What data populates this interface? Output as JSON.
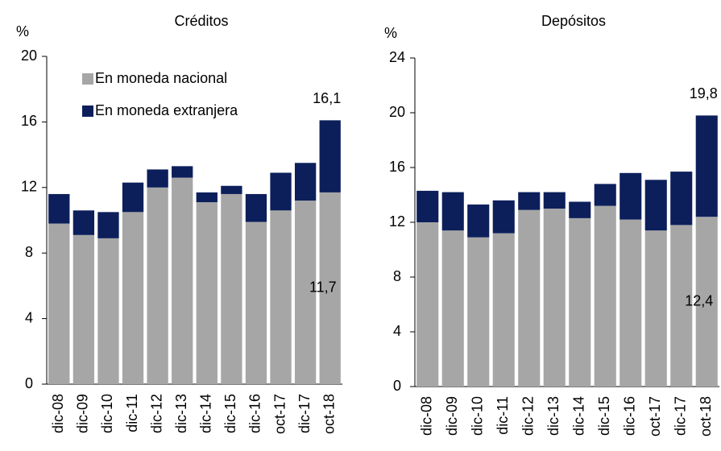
{
  "chart_data": [
    {
      "type": "stacked_bar",
      "title": "Créditos",
      "y_label": "%",
      "categories": [
        "dic-08",
        "dic-09",
        "dic-10",
        "dic-11",
        "dic-12",
        "dic-13",
        "dic-14",
        "dic-15",
        "dic-16",
        "oct-17",
        "dic-17",
        "oct-18"
      ],
      "series": [
        {
          "name": "En moneda nacional",
          "color": "#a6a6a6",
          "values": [
            9.8,
            9.1,
            8.9,
            10.5,
            12.0,
            12.6,
            11.1,
            11.6,
            9.9,
            10.6,
            11.2,
            11.7
          ]
        },
        {
          "name": "En moneda extranjera",
          "color": "#0c1f5b",
          "values": [
            1.8,
            1.5,
            1.6,
            1.8,
            1.1,
            0.7,
            0.6,
            0.5,
            1.7,
            2.3,
            2.3,
            4.4
          ]
        }
      ],
      "annotations": [
        "16,1",
        "11,7"
      ],
      "ylim": [
        0,
        20
      ],
      "yticks": [
        0,
        4,
        8,
        12,
        16,
        20
      ],
      "legend": "upper left"
    },
    {
      "type": "stacked_bar",
      "title": "Depósitos",
      "y_label": "%",
      "categories": [
        "dic-08",
        "dic-09",
        "dic-10",
        "dic-11",
        "dic-12",
        "dic-13",
        "dic-14",
        "dic-15",
        "dic-16",
        "oct-17",
        "dic-17",
        "oct-18"
      ],
      "series": [
        {
          "color": "#a6a6a6",
          "values": [
            12.0,
            11.4,
            10.9,
            11.2,
            12.9,
            13.0,
            12.3,
            13.2,
            12.2,
            11.4,
            11.8,
            12.4
          ]
        },
        {
          "color": "#0c1f5b",
          "values": [
            2.3,
            2.8,
            2.4,
            2.4,
            1.3,
            1.2,
            1.2,
            1.6,
            3.4,
            3.7,
            3.9,
            7.4
          ]
        }
      ],
      "annotations": [
        "19,8",
        "12,4"
      ],
      "ylim": [
        0,
        24
      ],
      "yticks": [
        0,
        4,
        8,
        12,
        16,
        20,
        24
      ]
    }
  ]
}
